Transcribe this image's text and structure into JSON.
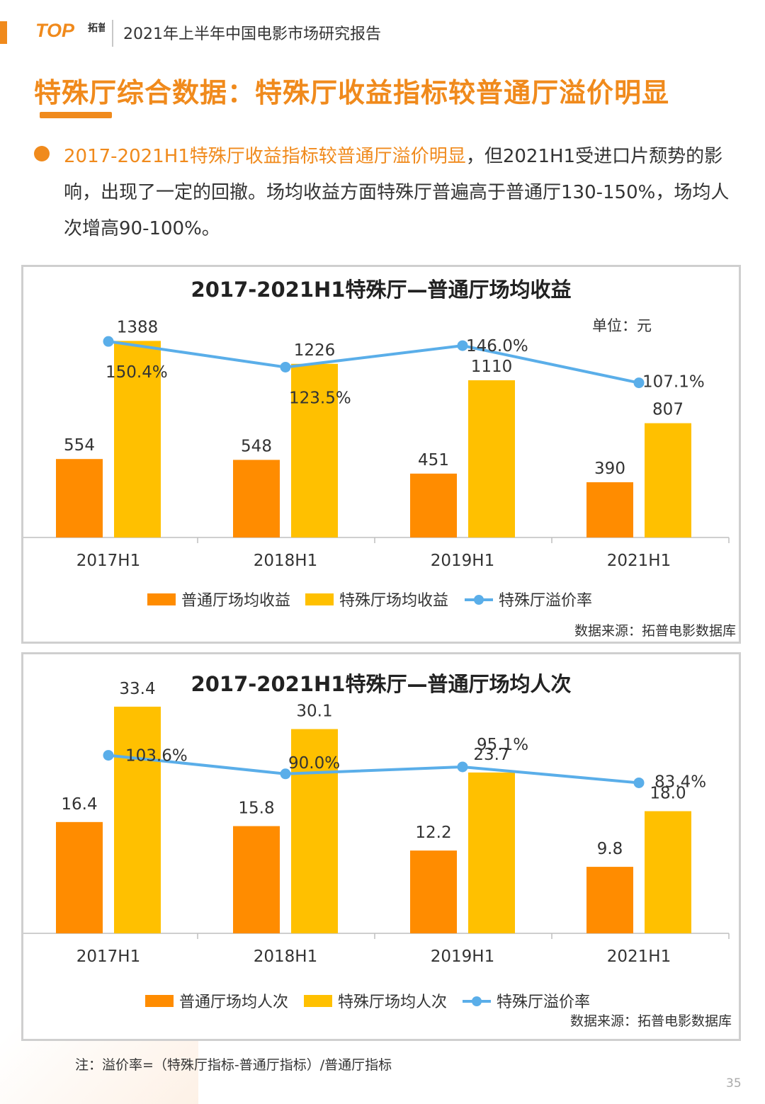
{
  "header": {
    "logo_text": "TOP",
    "logo_cn": "拓普",
    "report_title": "2021年上半年中国电影市场研究报告"
  },
  "page_title": "特殊厅综合数据：特殊厅收益指标较普通厅溢价明显",
  "summary": {
    "highlight": "2017-2021H1特殊厅收益指标较普通厅溢价明显",
    "rest": "，但2021H1受进口片颓势的影响，出现了一定的回撤。场均收益方面特殊厅普遍高于普通厅130-150%，场均人次增高90-100%。"
  },
  "colors": {
    "orange": "#ff8c00",
    "yellow": "#ffc000",
    "line": "#5aaee9",
    "accent": "#f08a1c"
  },
  "chart_data": [
    {
      "type": "bar",
      "title": "2017-2021H1特殊厅—普通厅场均收益",
      "unit": "单位：元",
      "categories": [
        "2017H1",
        "2018H1",
        "2019H1",
        "2021H1"
      ],
      "series": [
        {
          "name": "普通厅场均收益",
          "values": [
            554,
            548,
            451,
            390
          ],
          "labels": [
            "554",
            "548",
            "451",
            "390"
          ]
        },
        {
          "name": "特殊厅场均收益",
          "values": [
            1388,
            1226,
            1110,
            807
          ],
          "labels": [
            "1388",
            "1226",
            "1110",
            "807"
          ]
        }
      ],
      "line_series": {
        "name": "特殊厅溢价率",
        "values": [
          150.4,
          123.5,
          146.0,
          107.1
        ],
        "labels": [
          "150.4%",
          "123.5%",
          "146.0%",
          "107.1%"
        ]
      },
      "ylim": [
        0,
        1500
      ],
      "source": "数据来源：拓普电影数据库"
    },
    {
      "type": "bar",
      "title": "2017-2021H1特殊厅—普通厅场均人次",
      "categories": [
        "2017H1",
        "2018H1",
        "2019H1",
        "2021H1"
      ],
      "series": [
        {
          "name": "普通厅场均人次",
          "values": [
            16.4,
            15.8,
            12.2,
            9.8
          ],
          "labels": [
            "16.4",
            "15.8",
            "12.2",
            "9.8"
          ]
        },
        {
          "name": "特殊厅场均人次",
          "values": [
            33.4,
            30.1,
            23.7,
            18.0
          ],
          "labels": [
            "33.4",
            "30.1",
            "23.7",
            "18.0"
          ]
        }
      ],
      "line_series": {
        "name": "特殊厅溢价率",
        "values": [
          103.6,
          90.0,
          95.1,
          83.4
        ],
        "labels": [
          "103.6%",
          "90.0%",
          "95.1%",
          "83.4%"
        ]
      },
      "ylim": [
        0,
        36
      ],
      "source": "数据来源：拓普电影数据库"
    }
  ],
  "footnote": "注：溢价率=（特殊厅指标-普通厅指标）/普通厅指标",
  "page_number": "35"
}
